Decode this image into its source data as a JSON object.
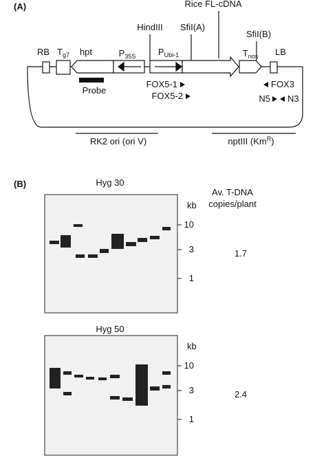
{
  "panel_a": {
    "label": "(A)",
    "cdna": "Rice FL-cDNA",
    "hindiii": "HindIII",
    "sfia": "SfiI(A)",
    "sfib": "SfiI(B)",
    "elements": [
      {
        "text": "RB"
      },
      {
        "text": "T",
        "sub": "g7"
      },
      {
        "text": "hpt"
      },
      {
        "text": "P",
        "sub": "35S"
      },
      {
        "text": "P",
        "sub": "Ubi-1"
      },
      {
        "text": "T",
        "sub": "nos"
      },
      {
        "text": "LB"
      }
    ],
    "probe": "Probe",
    "primers": [
      "FOX5-1",
      "FOX5-2",
      "FOX3",
      "N5",
      "N3"
    ],
    "ori": "RK2 ori (ori V)",
    "npt": {
      "text": "nptIII (Km",
      "sup": "R",
      "close": ")"
    }
  },
  "panel_b": {
    "label": "(B)",
    "header": [
      "Av. T-DNA",
      "copies/plant"
    ],
    "blots": [
      {
        "title": "Hyg 30",
        "unit": "kb",
        "markers": [
          10,
          3,
          1
        ],
        "copies": 1.7
      },
      {
        "title": "Hyg 50",
        "unit": "kb",
        "markers": [
          10,
          3,
          1
        ],
        "copies": 2.4
      }
    ]
  }
}
